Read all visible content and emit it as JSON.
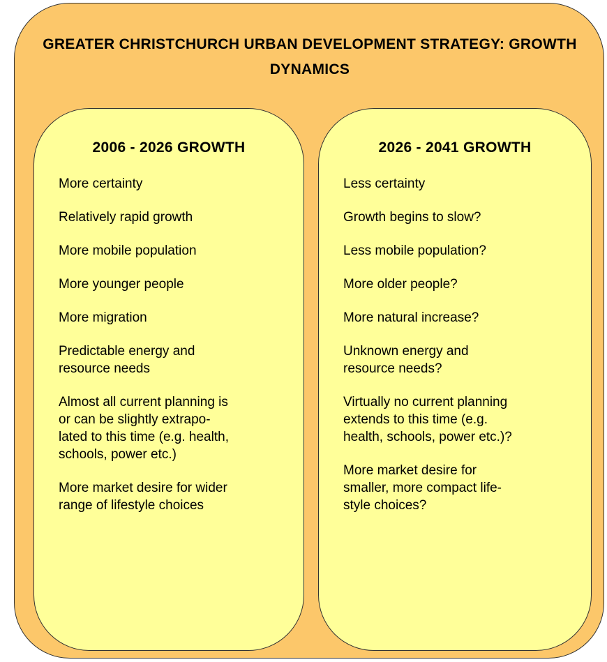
{
  "title": [
    "GREATER CHRISTCHURCH URBAN DEVELOPMENT STRATEGY: GROWTH",
    "DYNAMICS"
  ],
  "columns": [
    {
      "heading": "2006 - 2026 GROWTH",
      "items": [
        [
          "More certainty"
        ],
        [
          "Relatively rapid growth"
        ],
        [
          "More mobile population"
        ],
        [
          "More younger people"
        ],
        [
          "More migration"
        ],
        [
          "Predictable energy and",
          "resource needs"
        ],
        [
          "Almost all current planning is",
          "or can be slightly extrapo-",
          "lated to this time (e.g. health,",
          "schools, power etc.)"
        ],
        [
          "More market desire for wider",
          "range of lifestyle choices"
        ]
      ]
    },
    {
      "heading": "2026 - 2041 GROWTH",
      "items": [
        [
          "Less certainty"
        ],
        [
          "Growth begins to slow?"
        ],
        [
          "Less mobile population?"
        ],
        [
          "More older people?"
        ],
        [
          "More natural increase?"
        ],
        [
          "Unknown energy and",
          "resource needs?"
        ],
        [
          "Virtually no current planning",
          "extends to this time (e.g.",
          "health, schools, power etc.)?"
        ],
        [
          "More market desire for",
          "smaller, more compact life-",
          "style choices?"
        ]
      ]
    }
  ]
}
